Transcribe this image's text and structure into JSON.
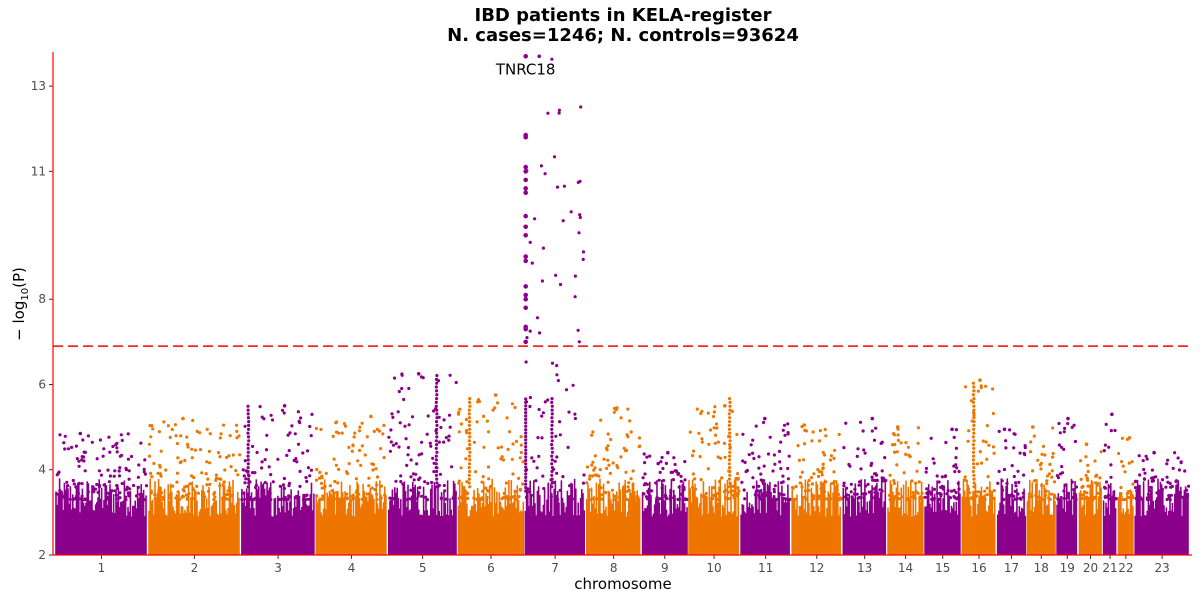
{
  "chart_data": {
    "type": "scatter",
    "subtype": "manhattan",
    "title_line1": "IBD patients in KELA-register",
    "title_line2": "N. cases=1246; N. controls=93624",
    "xlabel": "chromosome",
    "ylabel": "−log10(P)",
    "ylabel_base": "− log",
    "ylabel_sub": "10",
    "ylabel_arg": "(P)",
    "ylim": [
      2,
      13.8
    ],
    "yticks": [
      2,
      4,
      6,
      8,
      11,
      13
    ],
    "significance_threshold": 6.9,
    "colors": {
      "odd": "#8B008B",
      "even": "#EE7600",
      "threshold": "#FF0000",
      "axis": "#FF0000"
    },
    "chromosomes": [
      {
        "label": "1",
        "span": 1.0,
        "peak": 4.85
      },
      {
        "label": "2",
        "span": 1.0,
        "peak": 5.2
      },
      {
        "label": "3",
        "span": 0.8,
        "peak": 5.5
      },
      {
        "label": "4",
        "span": 0.78,
        "peak": 5.25
      },
      {
        "label": "5",
        "span": 0.75,
        "peak": 6.25
      },
      {
        "label": "6",
        "span": 0.72,
        "peak": 5.75
      },
      {
        "label": "7",
        "span": 0.66,
        "peak": 13.7
      },
      {
        "label": "8",
        "span": 0.6,
        "peak": 5.45
      },
      {
        "label": "9",
        "span": 0.5,
        "peak": 4.4
      },
      {
        "label": "10",
        "span": 0.56,
        "peak": 5.5
      },
      {
        "label": "11",
        "span": 0.55,
        "peak": 5.2
      },
      {
        "label": "12",
        "span": 0.55,
        "peak": 5.05
      },
      {
        "label": "13",
        "span": 0.48,
        "peak": 5.2
      },
      {
        "label": "14",
        "span": 0.4,
        "peak": 5.0
      },
      {
        "label": "15",
        "span": 0.4,
        "peak": 4.95
      },
      {
        "label": "16",
        "span": 0.38,
        "peak": 6.1
      },
      {
        "label": "17",
        "span": 0.32,
        "peak": 4.95
      },
      {
        "label": "18",
        "span": 0.32,
        "peak": 5.0
      },
      {
        "label": "19",
        "span": 0.24,
        "peak": 5.2
      },
      {
        "label": "20",
        "span": 0.26,
        "peak": 4.6
      },
      {
        "label": "21",
        "span": 0.16,
        "peak": 5.3
      },
      {
        "label": "22",
        "span": 0.18,
        "peak": 4.75
      },
      {
        "label": "23",
        "span": 0.6,
        "peak": 4.4
      }
    ],
    "top_hit": {
      "gene": "TNRC18",
      "chromosome": "7",
      "position_fraction": 0.02,
      "lead_value": 13.7,
      "column_values": [
        7.0,
        7.3,
        7.35,
        7.8,
        8.0,
        8.1,
        8.3,
        8.9,
        9.0,
        9.5,
        9.7,
        9.95,
        10.5,
        10.6,
        10.8,
        11.0,
        11.1,
        11.8,
        11.85
      ]
    },
    "notable_peaks": [
      {
        "chromosome": "5",
        "position_fraction": 0.7,
        "value": 6.25
      },
      {
        "chromosome": "6",
        "position_fraction": 0.18,
        "value": 5.75
      },
      {
        "chromosome": "16",
        "position_fraction": 0.35,
        "value": 6.1
      },
      {
        "chromosome": "7",
        "position_fraction": 0.45,
        "value": 5.75
      },
      {
        "chromosome": "10",
        "position_fraction": 0.8,
        "value": 5.75
      },
      {
        "chromosome": "3",
        "position_fraction": 0.1,
        "value": 5.5
      }
    ]
  }
}
